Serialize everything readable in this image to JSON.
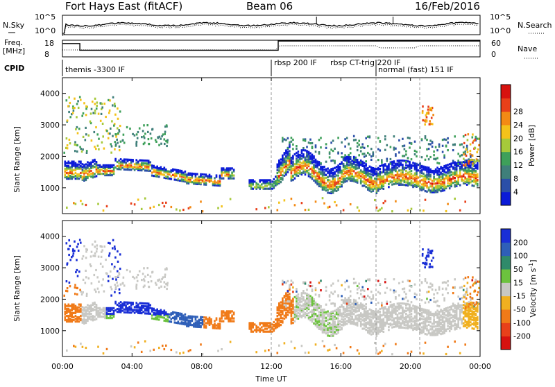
{
  "header": {
    "title": "Fort Hays East (fitACF)",
    "beam": "Beam 06",
    "date": "16/Feb/2016"
  },
  "nsky_panel": {
    "left_label": "N.Sky",
    "right_label": "N.Search",
    "left_ticks": [
      "10^5",
      "10^0"
    ],
    "right_ticks": [
      "10^5",
      "10^0"
    ]
  },
  "freq_panel": {
    "left_label_line1": "Freq.",
    "left_label_line2": "[MHz]",
    "right_label": "Nave",
    "left_ticks": [
      "18",
      "8"
    ],
    "right_ticks": [
      "60",
      "0"
    ]
  },
  "cpid": {
    "label": "CPID",
    "modes": [
      {
        "name": "themis -3300 IF",
        "start_h": 0.0
      },
      {
        "name": "rbsp 200 IF",
        "start_h": 12.0
      },
      {
        "name": "rbsp CT-trig 220 IF",
        "start_h": 14.3
      },
      {
        "name": "normal (fast) 151 IF",
        "start_h": 18.1
      }
    ]
  },
  "chart_data": [
    {
      "type": "heatmap",
      "name": "power",
      "xlabel": "Time UT",
      "ylabel": "Slant Range [km]",
      "colorbar_label": "Power [dB]",
      "x_ticks": [
        "00:00",
        "04:00",
        "08:00",
        "12:00",
        "16:00",
        "20:00",
        "00:00"
      ],
      "y_ticks": [
        1000,
        2000,
        3000,
        4000
      ],
      "xlim_h": [
        0,
        24
      ],
      "ylim_km": [
        180,
        4500
      ],
      "colorbar_ticks": [
        4,
        8,
        12,
        16,
        20,
        24,
        28
      ],
      "colorbar_colors": [
        "#0b1bd8",
        "#2b4fa8",
        "#3f7f7a",
        "#3ea05a",
        "#a6c93a",
        "#f3c21a",
        "#f38a14",
        "#e8401a",
        "#d7120f"
      ]
    },
    {
      "type": "heatmap",
      "name": "velocity",
      "xlabel": "Time UT",
      "ylabel": "Slant Range [km]",
      "colorbar_label": "Velocity [m s^-1]",
      "x_ticks": [
        "00:00",
        "04:00",
        "08:00",
        "12:00",
        "16:00",
        "20:00",
        "00:00"
      ],
      "y_ticks": [
        1000,
        2000,
        3000,
        4000
      ],
      "xlim_h": [
        0,
        24
      ],
      "ylim_km": [
        180,
        4500
      ],
      "colorbar_ticks": [
        200,
        100,
        50,
        15,
        -15,
        -50,
        -100,
        -200
      ],
      "colorbar_colors": [
        "#1a2fd6",
        "#2e5fb8",
        "#2f8a6a",
        "#6cc23e",
        "#c8c8c4",
        "#f0b020",
        "#f07a18",
        "#e8401a",
        "#d7120f"
      ]
    }
  ]
}
